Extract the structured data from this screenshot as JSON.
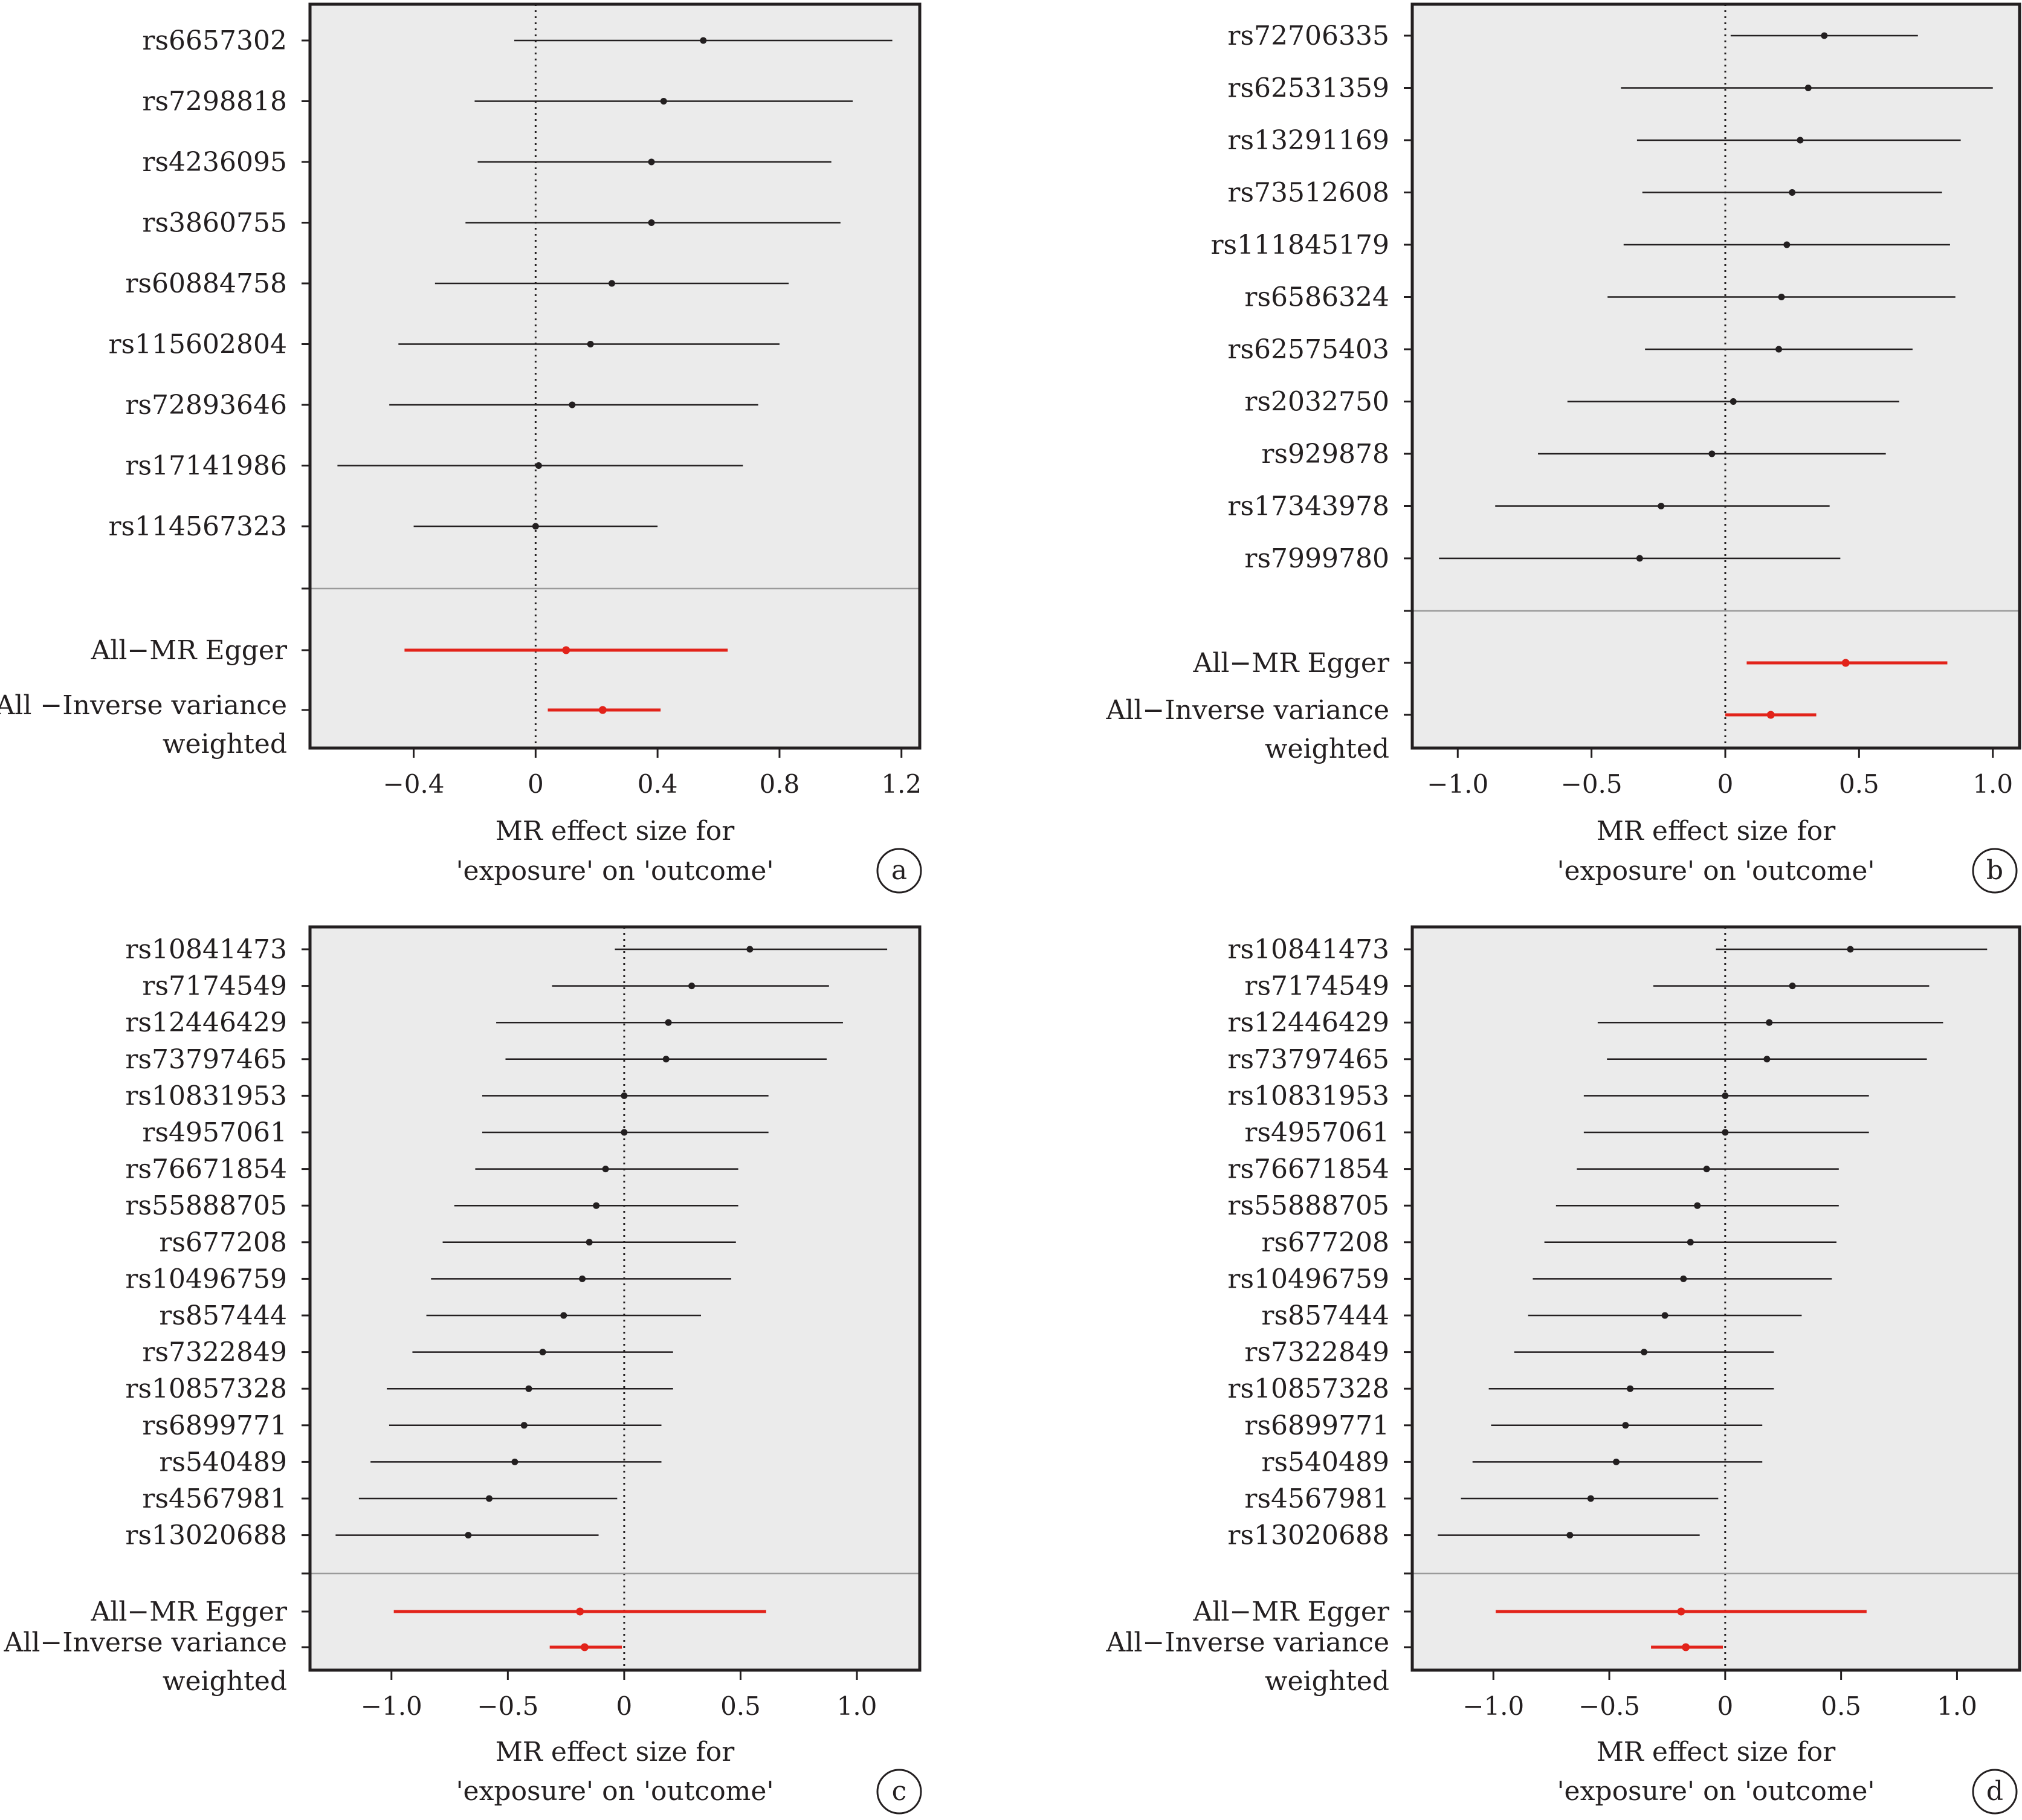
{
  "chart_data": [
    {
      "type": "forest",
      "panel_label": "a",
      "xlabel_lines": [
        "MR effect size for",
        "'exposure' on 'outcome'"
      ],
      "xlim": [
        -0.74,
        1.26
      ],
      "xticks": [
        -0.4,
        0,
        0.4,
        0.8,
        1.2
      ],
      "xtick_labels": [
        "−0.4",
        "0",
        "0.4",
        "0.8",
        "1.2"
      ],
      "snps": [
        {
          "label": "rs6657302",
          "b": 0.55,
          "lo": -0.07,
          "hi": 1.17
        },
        {
          "label": "rs7298818",
          "b": 0.42,
          "lo": -0.2,
          "hi": 1.04
        },
        {
          "label": "rs4236095",
          "b": 0.38,
          "lo": -0.19,
          "hi": 0.97
        },
        {
          "label": "rs3860755",
          "b": 0.38,
          "lo": -0.23,
          "hi": 1.0
        },
        {
          "label": "rs60884758",
          "b": 0.25,
          "lo": -0.33,
          "hi": 0.83
        },
        {
          "label": "rs115602804",
          "b": 0.18,
          "lo": -0.45,
          "hi": 0.8
        },
        {
          "label": "rs72893646",
          "b": 0.12,
          "lo": -0.48,
          "hi": 0.73
        },
        {
          "label": "rs17141986",
          "b": 0.01,
          "lo": -0.65,
          "hi": 0.68
        },
        {
          "label": "rs114567323",
          "b": 0.0,
          "lo": -0.4,
          "hi": 0.4
        }
      ],
      "pooled": [
        {
          "label_lines": [
            "All−MR Egger"
          ],
          "b": 0.1,
          "lo": -0.43,
          "hi": 0.63
        },
        {
          "label_lines": [
            "All −Inverse variance",
            "weighted"
          ],
          "b": 0.22,
          "lo": 0.04,
          "hi": 0.41
        }
      ],
      "colors": {
        "snp": "#231f20",
        "pooled": "#e2231a",
        "background": "#ebebeb",
        "divider": "#9a9a9a"
      }
    },
    {
      "type": "forest",
      "panel_label": "b",
      "xlabel_lines": [
        "MR effect size for",
        "'exposure' on 'outcome'"
      ],
      "xlim": [
        -1.17,
        1.1
      ],
      "xticks": [
        -1.0,
        -0.5,
        0,
        0.5,
        1.0
      ],
      "xtick_labels": [
        "−1.0",
        "−0.5",
        "0",
        "0.5",
        "1.0"
      ],
      "snps": [
        {
          "label": "rs72706335",
          "b": 0.37,
          "lo": 0.02,
          "hi": 0.72
        },
        {
          "label": "rs62531359",
          "b": 0.31,
          "lo": -0.39,
          "hi": 1.0
        },
        {
          "label": "rs13291169",
          "b": 0.28,
          "lo": -0.33,
          "hi": 0.88
        },
        {
          "label": "rs73512608",
          "b": 0.25,
          "lo": -0.31,
          "hi": 0.81
        },
        {
          "label": "rs111845179",
          "b": 0.23,
          "lo": -0.38,
          "hi": 0.84
        },
        {
          "label": "rs6586324",
          "b": 0.21,
          "lo": -0.44,
          "hi": 0.86
        },
        {
          "label": "rs62575403",
          "b": 0.2,
          "lo": -0.3,
          "hi": 0.7
        },
        {
          "label": "rs2032750",
          "b": 0.03,
          "lo": -0.59,
          "hi": 0.65
        },
        {
          "label": "rs929878",
          "b": -0.05,
          "lo": -0.7,
          "hi": 0.6
        },
        {
          "label": "rs17343978",
          "b": -0.24,
          "lo": -0.86,
          "hi": 0.39
        },
        {
          "label": "rs7999780",
          "b": -0.32,
          "lo": -1.07,
          "hi": 0.43
        }
      ],
      "pooled": [
        {
          "label_lines": [
            "All−MR Egger"
          ],
          "b": 0.45,
          "lo": 0.08,
          "hi": 0.83
        },
        {
          "label_lines": [
            "All−Inverse variance",
            "weighted"
          ],
          "b": 0.17,
          "lo": 0.0,
          "hi": 0.34
        }
      ],
      "colors": {
        "snp": "#231f20",
        "pooled": "#e2231a",
        "background": "#ebebeb",
        "divider": "#9a9a9a"
      }
    },
    {
      "type": "forest",
      "panel_label": "c",
      "xlabel_lines": [
        "MR effect size for",
        "'exposure' on 'outcome'"
      ],
      "xlim": [
        -1.35,
        1.27
      ],
      "xticks": [
        -1.0,
        -0.5,
        0,
        0.5,
        1.0
      ],
      "xtick_labels": [
        "−1.0",
        "−0.5",
        "0",
        "0.5",
        "1.0"
      ],
      "snps": [
        {
          "label": "rs10841473",
          "b": 0.54,
          "lo": -0.04,
          "hi": 1.13
        },
        {
          "label": "rs7174549",
          "b": 0.29,
          "lo": -0.31,
          "hi": 0.88
        },
        {
          "label": "rs12446429",
          "b": 0.19,
          "lo": -0.55,
          "hi": 0.94
        },
        {
          "label": "rs73797465",
          "b": 0.18,
          "lo": -0.51,
          "hi": 0.87
        },
        {
          "label": "rs10831953",
          "b": 0.0,
          "lo": -0.61,
          "hi": 0.62
        },
        {
          "label": "rs4957061",
          "b": 0.0,
          "lo": -0.61,
          "hi": 0.62
        },
        {
          "label": "rs76671854",
          "b": -0.08,
          "lo": -0.64,
          "hi": 0.49
        },
        {
          "label": "rs55888705",
          "b": -0.12,
          "lo": -0.73,
          "hi": 0.49
        },
        {
          "label": "rs677208",
          "b": -0.15,
          "lo": -0.78,
          "hi": 0.48
        },
        {
          "label": "rs10496759",
          "b": -0.18,
          "lo": -0.83,
          "hi": 0.46
        },
        {
          "label": "rs857444",
          "b": -0.26,
          "lo": -0.85,
          "hi": 0.33
        },
        {
          "label": "rs7322849",
          "b": -0.35,
          "lo": -0.91,
          "hi": 0.21
        },
        {
          "label": "rs10857328",
          "b": -0.41,
          "lo": -1.02,
          "hi": 0.21
        },
        {
          "label": "rs6899771",
          "b": -0.43,
          "lo": -1.01,
          "hi": 0.16
        },
        {
          "label": "rs540489",
          "b": -0.47,
          "lo": -1.09,
          "hi": 0.16
        },
        {
          "label": "rs4567981",
          "b": -0.58,
          "lo": -1.14,
          "hi": -0.03
        },
        {
          "label": "rs13020688",
          "b": -0.67,
          "lo": -1.24,
          "hi": -0.11
        }
      ],
      "pooled": [
        {
          "label_lines": [
            "All−MR Egger"
          ],
          "b": -0.19,
          "lo": -0.99,
          "hi": 0.61
        },
        {
          "label_lines": [
            "All−Inverse variance",
            "weighted"
          ],
          "b": -0.17,
          "lo": -0.32,
          "hi": -0.01
        }
      ],
      "colors": {
        "snp": "#231f20",
        "pooled": "#e2231a",
        "background": "#ebebeb",
        "divider": "#9a9a9a"
      }
    },
    {
      "type": "forest",
      "panel_label": "d",
      "xlabel_lines": [
        "MR effect size for",
        "'exposure' on 'outcome'"
      ],
      "xlim": [
        -1.35,
        1.27
      ],
      "xticks": [
        -1.0,
        -0.5,
        0,
        0.5,
        1.0
      ],
      "xtick_labels": [
        "−1.0",
        "−0.5",
        "0",
        "0.5",
        "1.0"
      ],
      "snps": [
        {
          "label": "rs10841473",
          "b": 0.54,
          "lo": -0.04,
          "hi": 1.13
        },
        {
          "label": "rs7174549",
          "b": 0.29,
          "lo": -0.31,
          "hi": 0.88
        },
        {
          "label": "rs12446429",
          "b": 0.19,
          "lo": -0.55,
          "hi": 0.94
        },
        {
          "label": "rs73797465",
          "b": 0.18,
          "lo": -0.51,
          "hi": 0.87
        },
        {
          "label": "rs10831953",
          "b": 0.0,
          "lo": -0.61,
          "hi": 0.62
        },
        {
          "label": "rs4957061",
          "b": 0.0,
          "lo": -0.61,
          "hi": 0.62
        },
        {
          "label": "rs76671854",
          "b": -0.08,
          "lo": -0.64,
          "hi": 0.49
        },
        {
          "label": "rs55888705",
          "b": -0.12,
          "lo": -0.73,
          "hi": 0.49
        },
        {
          "label": "rs677208",
          "b": -0.15,
          "lo": -0.78,
          "hi": 0.48
        },
        {
          "label": "rs10496759",
          "b": -0.18,
          "lo": -0.83,
          "hi": 0.46
        },
        {
          "label": "rs857444",
          "b": -0.26,
          "lo": -0.85,
          "hi": 0.33
        },
        {
          "label": "rs7322849",
          "b": -0.35,
          "lo": -0.91,
          "hi": 0.21
        },
        {
          "label": "rs10857328",
          "b": -0.41,
          "lo": -1.02,
          "hi": 0.21
        },
        {
          "label": "rs6899771",
          "b": -0.43,
          "lo": -1.01,
          "hi": 0.16
        },
        {
          "label": "rs540489",
          "b": -0.47,
          "lo": -1.09,
          "hi": 0.16
        },
        {
          "label": "rs4567981",
          "b": -0.58,
          "lo": -1.14,
          "hi": -0.03
        },
        {
          "label": "rs13020688",
          "b": -0.67,
          "lo": -1.24,
          "hi": -0.11
        }
      ],
      "pooled": [
        {
          "label_lines": [
            "All−MR Egger"
          ],
          "b": -0.19,
          "lo": -0.99,
          "hi": 0.61
        },
        {
          "label_lines": [
            "All−Inverse variance",
            "weighted"
          ],
          "b": -0.17,
          "lo": -0.32,
          "hi": -0.01
        }
      ],
      "colors": {
        "snp": "#231f20",
        "pooled": "#e2231a",
        "background": "#ebebeb",
        "divider": "#9a9a9a"
      }
    }
  ]
}
